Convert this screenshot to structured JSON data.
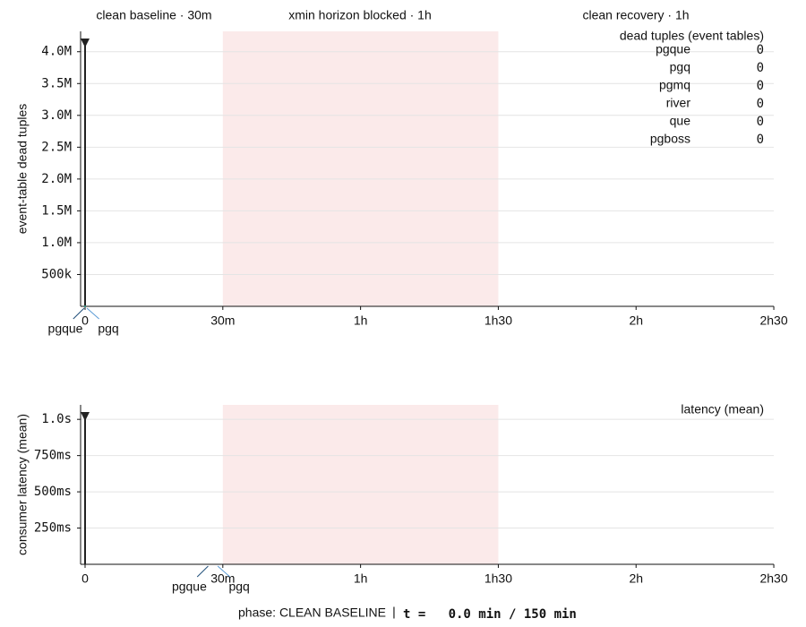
{
  "phases": [
    {
      "label": "clean baseline · 30m",
      "color": "#888888"
    },
    {
      "label": "xmin horizon blocked · 1h",
      "color": "#d9675f"
    },
    {
      "label": "clean recovery · 1h",
      "color": "#bbbbbb"
    }
  ],
  "status": {
    "phase": "phase: CLEAN BASELINE",
    "separator": "|",
    "time": "t =   0.0 min / 150 min"
  },
  "chart_data": [
    {
      "type": "line",
      "y_label": "event-table dead tuples",
      "legend_title": "dead tuples (event tables)",
      "x": [
        0
      ],
      "cursor": 0,
      "shaded_span": [
        30,
        90
      ],
      "shade_color": "#fbeaea",
      "grid": true,
      "xlim": [
        -1,
        150
      ],
      "xticks": [
        0,
        {
          "value": 30,
          "label": "30m"
        },
        {
          "value": 60,
          "label": "1h"
        },
        {
          "value": 90,
          "label": "1h30"
        },
        {
          "value": 120,
          "label": "2h"
        },
        {
          "value": 150,
          "label": "2h30"
        }
      ],
      "ylim": [
        0,
        4320000
      ],
      "yticks": [
        {
          "value": 500000,
          "label": "500k"
        },
        {
          "value": 1000000,
          "label": "1.0M"
        },
        {
          "value": 1500000,
          "label": "1.5M"
        },
        {
          "value": 2000000,
          "label": "2.0M"
        },
        {
          "value": 2500000,
          "label": "2.5M"
        },
        {
          "value": 3000000,
          "label": "3.0M"
        },
        {
          "value": 3500000,
          "label": "3.5M"
        },
        {
          "value": 4000000,
          "label": "4.0M"
        }
      ],
      "series": [
        {
          "name": "pgque",
          "color": "#1f4e79",
          "values": [
            0
          ]
        },
        {
          "name": "pgq",
          "color": "#5b9bd5",
          "values": [
            0
          ]
        },
        {
          "name": "pgmq",
          "color": "#c0392b",
          "values": [
            0
          ]
        },
        {
          "name": "river",
          "color": "#d68910",
          "values": [
            0
          ]
        },
        {
          "name": "que",
          "color": "#8e44ad",
          "values": [
            0
          ]
        },
        {
          "name": "pgboss",
          "color": "#16a085",
          "values": [
            0
          ]
        }
      ],
      "annotations": [
        {
          "text": "pgque",
          "x": 0,
          "y": 0,
          "color": "#1f4e79"
        },
        {
          "text": "pgq",
          "x": 0,
          "y": 0,
          "color": "#5b9bd5"
        }
      ]
    },
    {
      "type": "line",
      "y_label": "consumer latency (mean)",
      "legend_title": "latency (mean)",
      "cursor": 0,
      "shaded_span": [
        30,
        90
      ],
      "shade_color": "#fbeaea",
      "grid": true,
      "xlim": [
        -1,
        150
      ],
      "xticks": [
        0,
        {
          "value": 30,
          "label": "30m"
        },
        {
          "value": 60,
          "label": "1h"
        },
        {
          "value": 90,
          "label": "1h30"
        },
        {
          "value": 120,
          "label": "2h"
        },
        {
          "value": 150,
          "label": "2h30"
        }
      ],
      "ylim": [
        0,
        1.1
      ],
      "yticks": [
        {
          "value": 0.25,
          "label": "250ms"
        },
        {
          "value": 0.5,
          "label": "500ms"
        },
        {
          "value": 0.75,
          "label": "750ms"
        },
        {
          "value": 1.0,
          "label": "1.0s"
        }
      ],
      "annotations": [
        {
          "text": "pgque",
          "x": 27,
          "y": 0,
          "color": "#1f4e79"
        },
        {
          "text": "pgq",
          "x": 28.5,
          "y": 0,
          "color": "#5b9bd5"
        }
      ]
    }
  ]
}
